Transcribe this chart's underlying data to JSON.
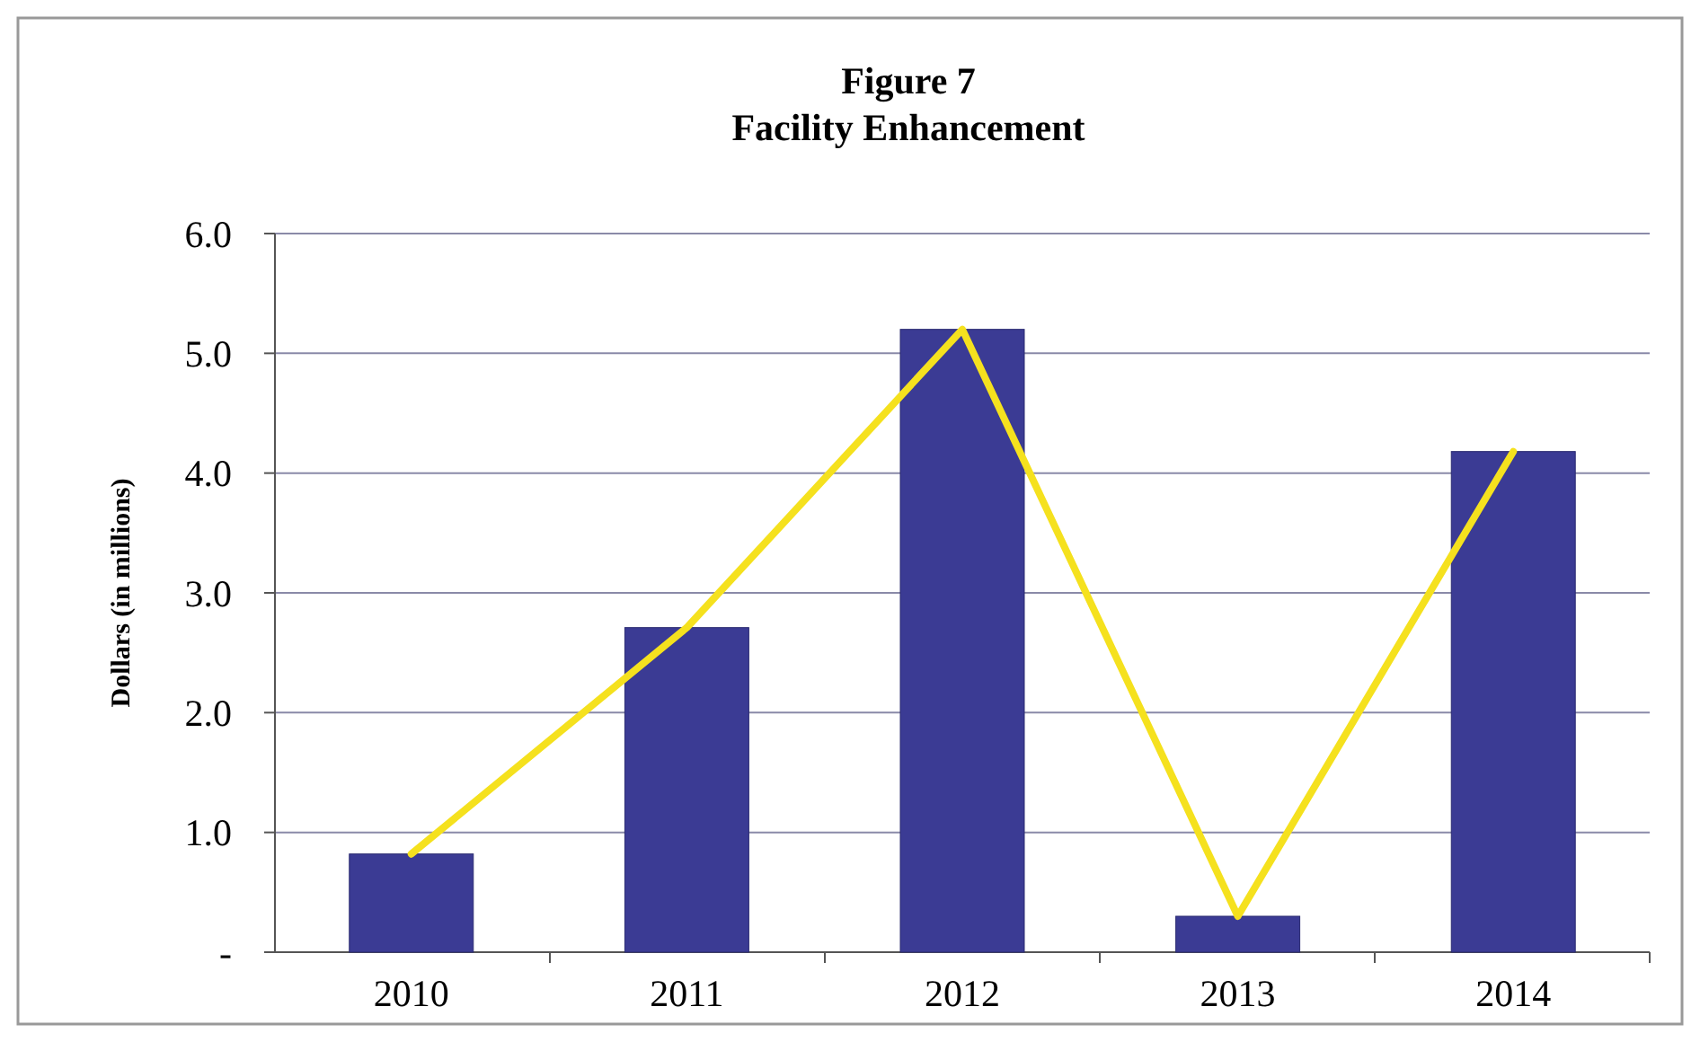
{
  "chart_data": {
    "type": "bar",
    "title": "Figure 7",
    "subtitle": "Facility Enhancement",
    "ylabel": "Dollars (in millions)",
    "categories": [
      "2010",
      "2011",
      "2012",
      "2013",
      "2014"
    ],
    "series": [
      {
        "color": "#3b3b94",
        "values": [
          0.82,
          2.71,
          5.2,
          0.3,
          4.18
        ]
      },
      {
        "type": "line",
        "color": "#f5e11e",
        "values": [
          0.82,
          2.71,
          5.2,
          0.3,
          4.18
        ]
      }
    ],
    "ylim": [
      0,
      6
    ],
    "yticks": [
      {
        "value": 0,
        "label": "-"
      },
      {
        "value": 1,
        "label": "1.0"
      },
      {
        "value": 2,
        "label": "2.0"
      },
      {
        "value": 3,
        "label": "3.0"
      },
      {
        "value": 4,
        "label": "4.0"
      },
      {
        "value": 5,
        "label": "5.0"
      },
      {
        "value": 6,
        "label": "6.0"
      }
    ],
    "grid": "y",
    "marker": "none",
    "line_style": "solid"
  }
}
